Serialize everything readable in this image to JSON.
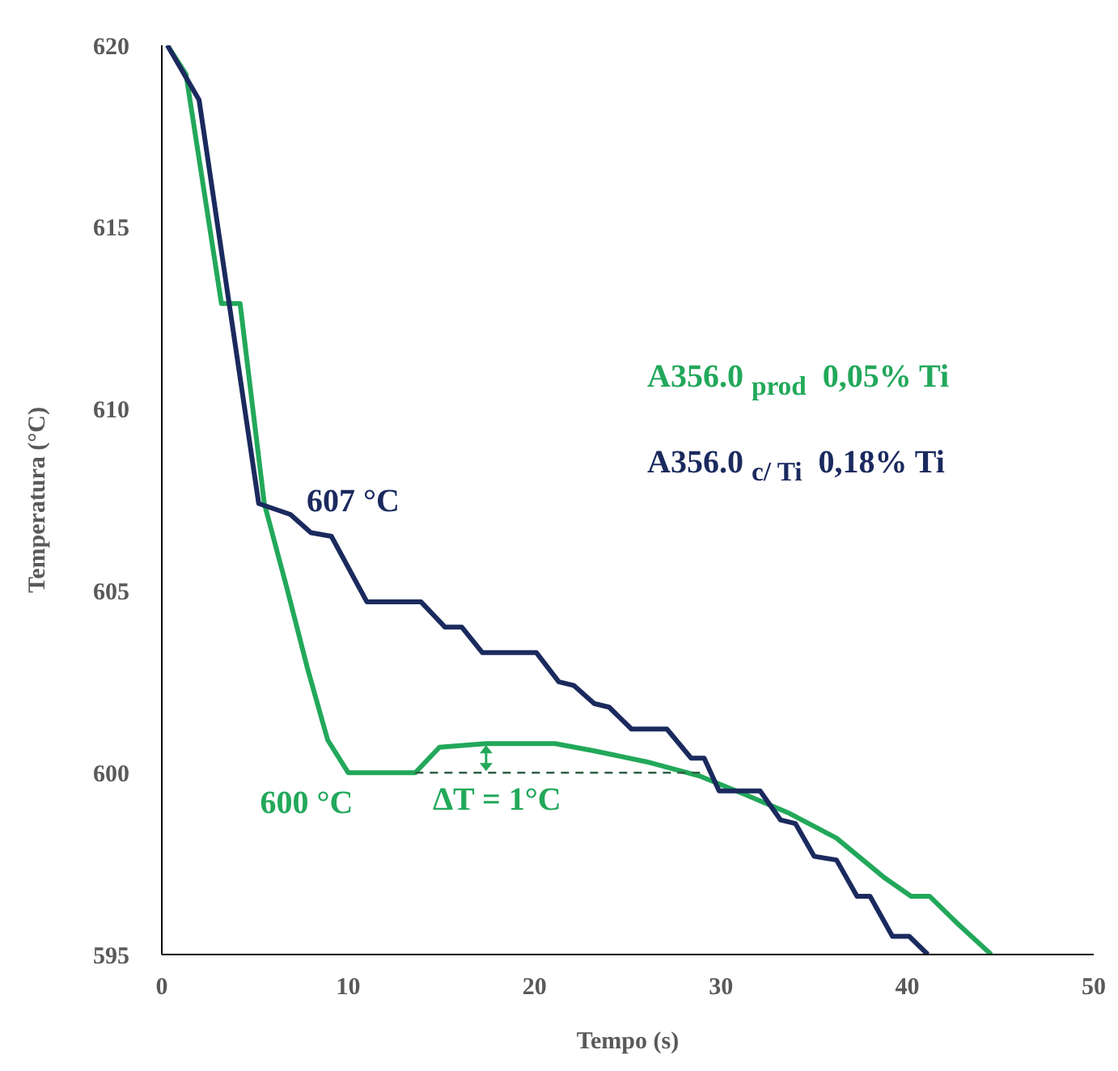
{
  "chart_data": {
    "type": "line",
    "xlabel": "Tempo (s)",
    "ylabel": "Temperatura (°C)",
    "xlim": [
      0,
      50
    ],
    "xticks": [
      0,
      10,
      20,
      30,
      40,
      50
    ],
    "ylim": [
      595,
      620
    ],
    "yticks": [
      595,
      600,
      605,
      610,
      615,
      620
    ],
    "grid": false,
    "legend": "right",
    "marker": "none",
    "line_style": "solid",
    "series": [
      {
        "name": "A356.0 $_{prod}$  0,05% Ti",
        "color": "#22a85a",
        "x": [
          0.3,
          1.3,
          3.2,
          4.2,
          5.5,
          6.7,
          7.8,
          8.9,
          10.0,
          13.6,
          14.9,
          17.4,
          21.1,
          23.2,
          26.0,
          28.9,
          31.3,
          33.6,
          36.2,
          38.8,
          40.2,
          41.2,
          42.8,
          44.5
        ],
        "values": [
          620,
          619.2,
          612.9,
          612.9,
          607.4,
          605.1,
          602.9,
          600.9,
          600.0,
          600.0,
          600.7,
          600.8,
          600.8,
          600.6,
          600.3,
          599.9,
          599.4,
          598.9,
          598.2,
          597.1,
          596.6,
          596.6,
          595.8,
          595.0
        ]
      },
      {
        "name": "A356.0 $_{c/ Ti}$  0,18% Ti",
        "color": "#1b2a5e",
        "x": [
          0.3,
          2.0,
          5.2,
          6.9,
          8.0,
          9.1,
          11.0,
          13.9,
          15.2,
          16.1,
          17.2,
          20.1,
          21.3,
          22.1,
          23.2,
          24.0,
          25.2,
          27.1,
          28.4,
          29.1,
          29.9,
          32.1,
          33.2,
          34.0,
          35.0,
          36.2,
          37.3,
          38.0,
          39.2,
          40.1,
          41.1
        ],
        "values": [
          620,
          618.5,
          607.4,
          607.1,
          606.6,
          606.5,
          604.7,
          604.7,
          604.0,
          604.0,
          603.3,
          603.3,
          602.5,
          602.4,
          601.9,
          601.8,
          601.2,
          601.2,
          600.4,
          600.4,
          599.5,
          599.5,
          598.7,
          598.6,
          597.7,
          597.6,
          596.6,
          596.6,
          595.5,
          595.5,
          595.0
        ]
      },
      {
        "type": "line",
        "color": "#2f5f45",
        "line_style": "dashed",
        "x": [
          13.6,
          29.0
        ],
        "values": [
          600,
          600
        ]
      }
    ],
    "annotations": [
      {
        "text": "607 °C",
        "x": 6.9,
        "y": 607.1
      },
      {
        "text": "600 °C",
        "x": 10.0,
        "y": 600.0
      },
      {
        "text": "ΔT = 1°C",
        "x": 17.4,
        "y": 600
      }
    ]
  }
}
